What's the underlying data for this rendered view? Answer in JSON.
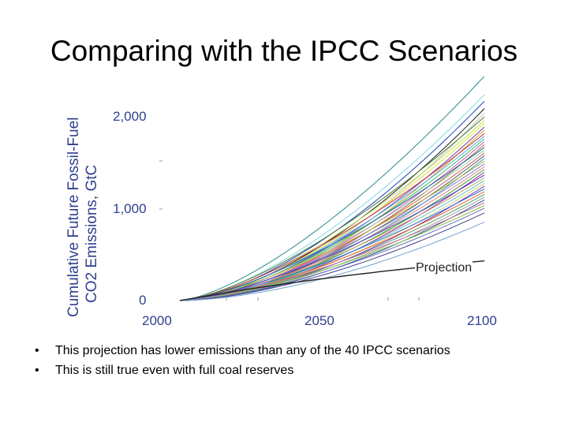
{
  "slide": {
    "title": "Comparing with the IPCC Scenarios",
    "bullets": [
      "This projection has lower emissions than any of the 40 IPCC scenarios",
      "This is still true even with full coal reserves"
    ]
  },
  "chart_data": {
    "type": "line",
    "ylabel_line1": "Cumulative Future Fossil-Fuel",
    "ylabel_line2": "CO2 Emissions, GtC",
    "xlabel": "",
    "x_ticks": [
      "2000",
      "2050",
      "2100"
    ],
    "y_ticks": [
      "0",
      "1,000",
      "2,000"
    ],
    "xlim": [
      2000,
      2100
    ],
    "ylim": [
      0,
      2000
    ],
    "grid": false,
    "legend": "none",
    "annotation": "Projection",
    "projection": {
      "name": "Projection",
      "color": "#222222",
      "values_2100": 430
    },
    "ipcc_scenarios": {
      "count": 40,
      "values_2100": [
        2430,
        2230,
        2160,
        2080,
        2030,
        1990,
        1950,
        1920,
        1880,
        1850,
        1810,
        1780,
        1750,
        1720,
        1690,
        1660,
        1630,
        1600,
        1570,
        1540,
        1510,
        1480,
        1450,
        1420,
        1390,
        1360,
        1330,
        1300,
        1270,
        1240,
        1210,
        1180,
        1150,
        1120,
        1090,
        1060,
        1030,
        1000,
        950,
        850
      ],
      "colors": [
        "#2a8a8a",
        "#7fd9e8",
        "#1a3fbf",
        "#1a1a1a",
        "#c0c0c0",
        "#4a7a2a",
        "#bfe05a",
        "#e0e030",
        "#6a3fa0",
        "#e0a030",
        "#c03050",
        "#50b0e0",
        "#30c060",
        "#e050c0",
        "#a07040",
        "#2060a0",
        "#90d0a0",
        "#d06060",
        "#606060",
        "#40a0a0",
        "#b0b040",
        "#8080e0",
        "#e08080",
        "#30a030",
        "#a030a0",
        "#4040c0",
        "#c0a060",
        "#60c0c0",
        "#d0d070",
        "#7030a0",
        "#3070d0",
        "#e06030",
        "#50a070",
        "#a0a0a0",
        "#2a5a8a",
        "#c070a0",
        "#80c040",
        "#7070c0",
        "#404090",
        "#70a0d0"
      ]
    }
  }
}
